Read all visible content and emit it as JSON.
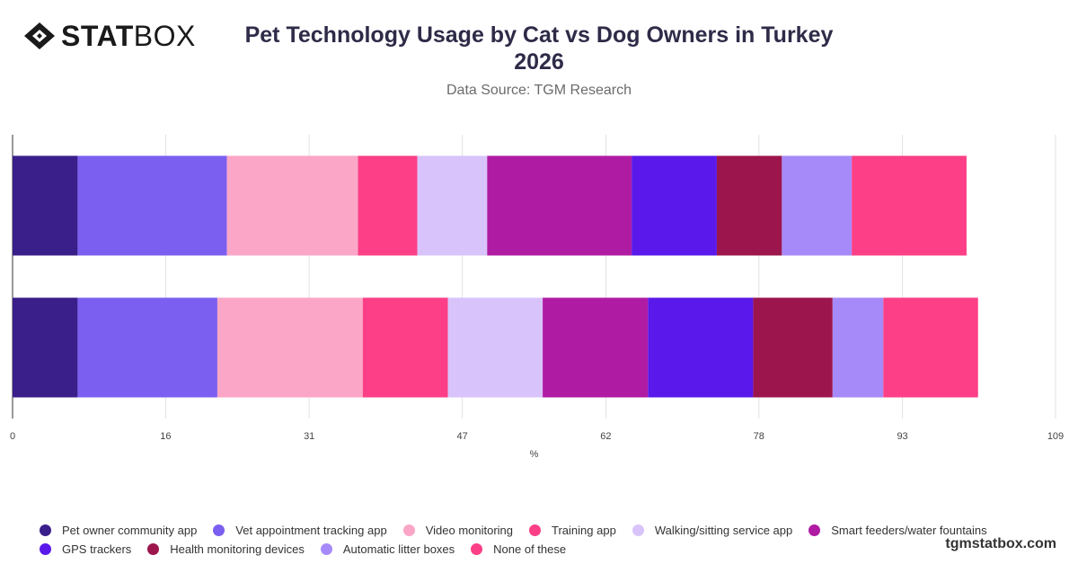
{
  "brand": {
    "logo_bold": "STAT",
    "logo_light": "BOX",
    "url": "tgmstatbox.com"
  },
  "chart_data": {
    "type": "bar",
    "orientation": "horizontal",
    "stacked": true,
    "title": "Pet Technology Usage by Cat vs Dog Owners in Turkey 2026",
    "subtitle": "Data Source: TGM Research",
    "xlabel": "%",
    "ylabel": "",
    "xlim": [
      0,
      109
    ],
    "x_ticks": [
      0,
      16,
      31,
      47,
      62,
      78,
      93,
      109
    ],
    "grid": true,
    "legend_position": "bottom",
    "categories": [
      "",
      ""
    ],
    "series": [
      {
        "name": "Pet owner community app",
        "color": "#3a1e8a",
        "values": [
          6.8,
          6.8
        ]
      },
      {
        "name": "Vet appointment tracking app",
        "color": "#7b5ff0",
        "values": [
          15.6,
          14.6
        ]
      },
      {
        "name": "Video monitoring",
        "color": "#fba6c7",
        "values": [
          13.7,
          15.2
        ]
      },
      {
        "name": "Training app",
        "color": "#fc3f86",
        "values": [
          6.2,
          8.9
        ]
      },
      {
        "name": "Walking/sitting service app",
        "color": "#d8c4fb",
        "values": [
          7.3,
          9.9
        ]
      },
      {
        "name": "Smart feeders/water fountains",
        "color": "#b01ba4",
        "values": [
          15.1,
          11.0
        ]
      },
      {
        "name": "GPS trackers",
        "color": "#5a19ea",
        "values": [
          8.9,
          11.0
        ]
      },
      {
        "name": "Health monitoring devices",
        "color": "#9c164d",
        "values": [
          6.8,
          8.3
        ]
      },
      {
        "name": "Automatic litter boxes",
        "color": "#a78af9",
        "values": [
          7.3,
          5.3
        ]
      },
      {
        "name": "None of these",
        "color": "#fc3f86",
        "values": [
          12.0,
          9.9
        ]
      }
    ]
  }
}
